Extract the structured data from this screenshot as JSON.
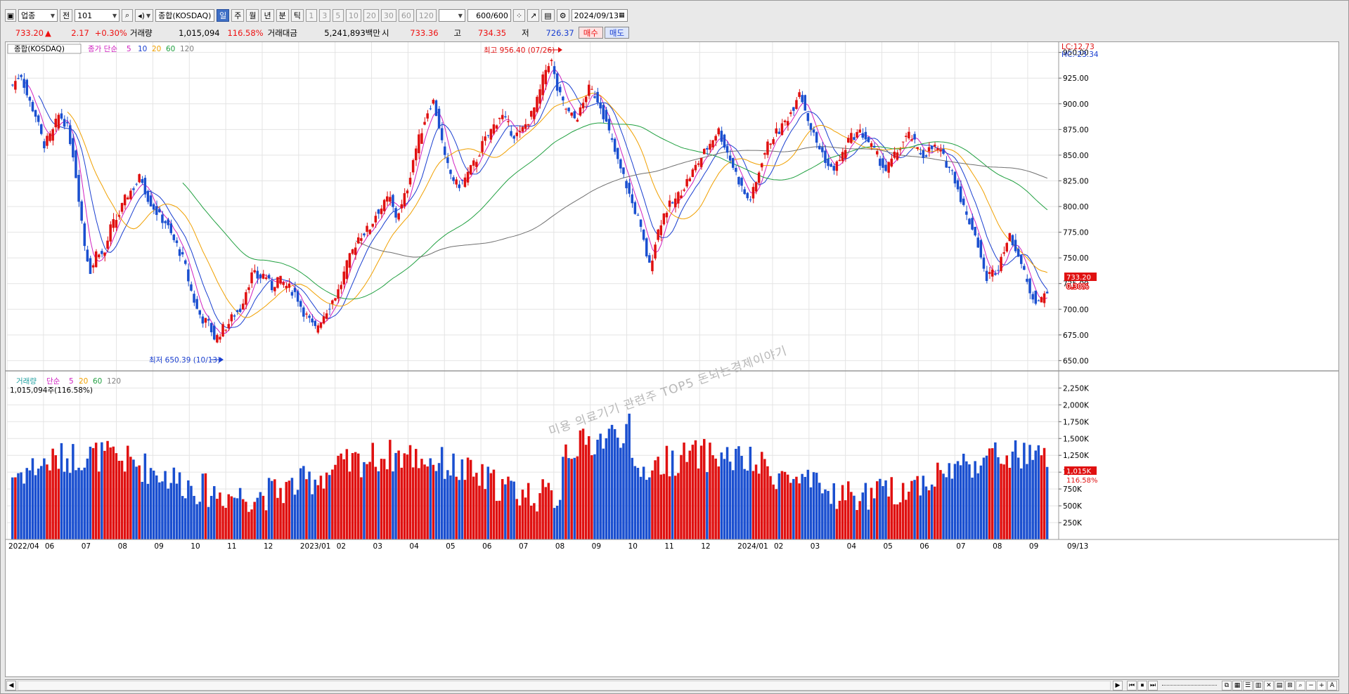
{
  "toolbar": {
    "category_label": "업종",
    "prefix_label": "전",
    "code": "101",
    "name": "종합(KOSDAQ)",
    "periods": [
      "일",
      "주",
      "월",
      "년",
      "분",
      "틱"
    ],
    "selected_period": "일",
    "minute_values": [
      "1",
      "3",
      "5",
      "10",
      "20",
      "30",
      "60",
      "120"
    ],
    "count_display": "600",
    "count_total": "/600",
    "date": "2024/09/13"
  },
  "quote": {
    "price": "733.20",
    "change_arrow": "▲",
    "change": "2.17",
    "change_pct": "+0.30%",
    "volume_label": "거래량",
    "volume": "1,015,094",
    "volume_ratio": "116.58%",
    "amount_label": "거래대금",
    "amount": "5,241,893백만",
    "open_label": "시",
    "open": "733.36",
    "high_label": "고",
    "high": "734.35",
    "low_label": "저",
    "low": "726.37",
    "buy_label": "매수",
    "sell_label": "매도"
  },
  "chart_data": [
    {
      "type": "candlestick",
      "title": "종합(KOSDAQ)",
      "legend": [
        "종가 단순",
        "5",
        "10",
        "20",
        "60",
        "120"
      ],
      "ma_colors": {
        "5": "#d020c0",
        "10": "#1a3fd0",
        "20": "#f0a000",
        "60": "#20a040",
        "120": "#707070"
      },
      "up_color": "#e01010",
      "down_color": "#1a4fd0",
      "y_ticks": [
        "950.00",
        "925.00",
        "900.00",
        "875.00",
        "850.00",
        "825.00",
        "800.00",
        "775.00",
        "750.00",
        "725.00",
        "700.00",
        "675.00",
        "650.00"
      ],
      "ylim": [
        640,
        960
      ],
      "x_labels": [
        "2022/04",
        "06",
        "07",
        "08",
        "09",
        "10",
        "11",
        "12",
        "2023/01",
        "02",
        "03",
        "04",
        "05",
        "06",
        "07",
        "08",
        "09",
        "10",
        "11",
        "12",
        "2024/01",
        "02",
        "03",
        "04",
        "05",
        "06",
        "07",
        "08",
        "09"
      ],
      "current_price_label": "733.20",
      "current_change_label": "0.30%",
      "lc_label": "LC:12.73",
      "hc_label": "HC:-23.34",
      "high_annotation": "최고 956.40 (07/26)",
      "low_annotation": "최저 650.39 (10/13)",
      "watermark": "미용 의료기기 관련주 TOP5 돈되는경제이야기",
      "x_axis_end_label": "09/13",
      "close_path": [
        [
          0,
          918
        ],
        [
          8,
          930
        ],
        [
          15,
          905
        ],
        [
          22,
          890
        ],
        [
          30,
          860
        ],
        [
          38,
          870
        ],
        [
          45,
          890
        ],
        [
          52,
          880
        ],
        [
          58,
          855
        ],
        [
          64,
          810
        ],
        [
          70,
          760
        ],
        [
          76,
          735
        ],
        [
          82,
          760
        ],
        [
          88,
          750
        ],
        [
          95,
          780
        ],
        [
          102,
          790
        ],
        [
          110,
          810
        ],
        [
          118,
          820
        ],
        [
          124,
          830
        ],
        [
          130,
          810
        ],
        [
          136,
          800
        ],
        [
          142,
          790
        ],
        [
          148,
          785
        ],
        [
          154,
          770
        ],
        [
          160,
          760
        ],
        [
          166,
          745
        ],
        [
          172,
          720
        ],
        [
          178,
          700
        ],
        [
          184,
          690
        ],
        [
          190,
          685
        ],
        [
          196,
          670
        ],
        [
          202,
          680
        ],
        [
          208,
          685
        ],
        [
          214,
          695
        ],
        [
          220,
          700
        ],
        [
          226,
          720
        ],
        [
          232,
          735
        ],
        [
          238,
          730
        ],
        [
          244,
          735
        ],
        [
          250,
          720
        ],
        [
          256,
          730
        ],
        [
          262,
          725
        ],
        [
          268,
          720
        ],
        [
          274,
          715
        ],
        [
          280,
          700
        ],
        [
          286,
          690
        ],
        [
          292,
          680
        ],
        [
          298,
          690
        ],
        [
          304,
          700
        ],
        [
          310,
          710
        ],
        [
          316,
          720
        ],
        [
          322,
          740
        ],
        [
          328,
          755
        ],
        [
          334,
          770
        ],
        [
          340,
          775
        ],
        [
          346,
          780
        ],
        [
          352,
          795
        ],
        [
          358,
          800
        ],
        [
          364,
          810
        ],
        [
          370,
          790
        ],
        [
          376,
          800
        ],
        [
          382,
          820
        ],
        [
          388,
          850
        ],
        [
          394,
          870
        ],
        [
          400,
          890
        ],
        [
          406,
          905
        ],
        [
          412,
          880
        ],
        [
          418,
          845
        ],
        [
          424,
          830
        ],
        [
          430,
          820
        ],
        [
          436,
          825
        ],
        [
          442,
          835
        ],
        [
          448,
          845
        ],
        [
          454,
          860
        ],
        [
          460,
          870
        ],
        [
          466,
          880
        ],
        [
          472,
          890
        ],
        [
          478,
          880
        ],
        [
          484,
          870
        ],
        [
          490,
          870
        ],
        [
          496,
          880
        ],
        [
          502,
          890
        ],
        [
          508,
          905
        ],
        [
          514,
          930
        ],
        [
          520,
          945
        ],
        [
          526,
          915
        ],
        [
          532,
          900
        ],
        [
          538,
          890
        ],
        [
          544,
          885
        ],
        [
          550,
          895
        ],
        [
          556,
          915
        ],
        [
          562,
          910
        ],
        [
          568,
          900
        ],
        [
          574,
          880
        ],
        [
          580,
          860
        ],
        [
          586,
          840
        ],
        [
          592,
          825
        ],
        [
          598,
          805
        ],
        [
          604,
          790
        ],
        [
          610,
          765
        ],
        [
          616,
          740
        ],
        [
          622,
          770
        ],
        [
          628,
          790
        ],
        [
          634,
          800
        ],
        [
          640,
          805
        ],
        [
          646,
          815
        ],
        [
          652,
          825
        ],
        [
          658,
          835
        ],
        [
          664,
          845
        ],
        [
          670,
          855
        ],
        [
          676,
          865
        ],
        [
          682,
          875
        ],
        [
          688,
          860
        ],
        [
          694,
          845
        ],
        [
          700,
          830
        ],
        [
          706,
          815
        ],
        [
          712,
          805
        ],
        [
          718,
          820
        ],
        [
          724,
          845
        ],
        [
          730,
          860
        ],
        [
          736,
          870
        ],
        [
          742,
          875
        ],
        [
          748,
          885
        ],
        [
          754,
          895
        ],
        [
          760,
          915
        ],
        [
          766,
          895
        ],
        [
          772,
          875
        ],
        [
          778,
          860
        ],
        [
          784,
          850
        ],
        [
          790,
          835
        ],
        [
          796,
          840
        ],
        [
          802,
          850
        ],
        [
          808,
          865
        ],
        [
          814,
          870
        ],
        [
          820,
          872
        ],
        [
          826,
          865
        ],
        [
          832,
          855
        ],
        [
          838,
          845
        ],
        [
          844,
          835
        ],
        [
          850,
          845
        ],
        [
          856,
          855
        ],
        [
          862,
          865
        ],
        [
          868,
          870
        ],
        [
          874,
          855
        ],
        [
          880,
          850
        ],
        [
          886,
          855
        ],
        [
          892,
          858
        ],
        [
          898,
          850
        ],
        [
          904,
          840
        ],
        [
          910,
          830
        ],
        [
          916,
          810
        ],
        [
          922,
          790
        ],
        [
          928,
          780
        ],
        [
          934,
          760
        ],
        [
          940,
          730
        ],
        [
          946,
          735
        ],
        [
          952,
          740
        ],
        [
          958,
          760
        ],
        [
          964,
          770
        ],
        [
          970,
          760
        ],
        [
          976,
          740
        ],
        [
          982,
          720
        ],
        [
          988,
          710
        ],
        [
          994,
          708
        ],
        [
          1000,
          720
        ]
      ]
    },
    {
      "type": "bar",
      "title": "거래량",
      "legend": [
        "단순",
        "5",
        "20",
        "60",
        "120"
      ],
      "volume_text": "1,015,094주(116.58%)",
      "y_ticks": [
        "2,250K",
        "2,000K",
        "1,750K",
        "1,500K",
        "1,250K",
        "1,000K",
        "750K",
        "500K",
        "250K"
      ],
      "ylim": [
        0,
        2400
      ],
      "current_volume_label": "1,015K",
      "current_ratio_label": "116.58%"
    }
  ],
  "scrollbar": {
    "left_arrow": "◀",
    "right_arrow": "▶",
    "controls": [
      "⏮",
      "⏹",
      "⏭"
    ],
    "tools": [
      "−",
      "+",
      "A"
    ]
  }
}
